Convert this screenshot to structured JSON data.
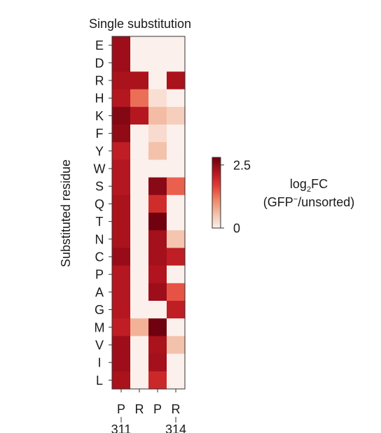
{
  "chart_data": {
    "type": "heatmap",
    "title": "Single substitution",
    "ylabel": "Substituted residue",
    "rows": [
      "E",
      "D",
      "R",
      "H",
      "K",
      "F",
      "Y",
      "W",
      "S",
      "Q",
      "T",
      "N",
      "C",
      "P",
      "A",
      "G",
      "M",
      "V",
      "I",
      "L"
    ],
    "columns": [
      "P",
      "R",
      "P",
      "R"
    ],
    "column_positions": [
      "311",
      "",
      "",
      "314"
    ],
    "values": [
      [
        2.4,
        0.0,
        0.0,
        0.0
      ],
      [
        2.4,
        0.0,
        0.0,
        0.0
      ],
      [
        2.3,
        2.3,
        0.0,
        2.3
      ],
      [
        2.2,
        1.3,
        0.2,
        0.0
      ],
      [
        2.6,
        2.2,
        0.6,
        0.4
      ],
      [
        2.5,
        0.0,
        0.25,
        0.0
      ],
      [
        2.1,
        0.0,
        0.55,
        0.0
      ],
      [
        2.2,
        0.0,
        0.0,
        0.0
      ],
      [
        2.2,
        0.0,
        2.55,
        1.4
      ],
      [
        2.3,
        0.0,
        1.9,
        0.0
      ],
      [
        2.3,
        0.0,
        2.75,
        0.0
      ],
      [
        2.3,
        0.0,
        2.35,
        0.5
      ],
      [
        2.45,
        0.0,
        2.35,
        2.1
      ],
      [
        2.2,
        0.0,
        2.25,
        0.0
      ],
      [
        2.2,
        0.0,
        2.4,
        1.5
      ],
      [
        2.2,
        0.0,
        0.0,
        2.1
      ],
      [
        2.1,
        0.7,
        2.75,
        0.0
      ],
      [
        2.4,
        0.0,
        2.3,
        0.55
      ],
      [
        2.4,
        0.0,
        2.35,
        0.0
      ],
      [
        2.3,
        0.0,
        1.95,
        0.0
      ]
    ],
    "colorbar": {
      "min": 0,
      "max": 2.8,
      "ticks": [
        0,
        2.5
      ],
      "tick_labels": [
        "0",
        "2.5"
      ],
      "colors": [
        "#fbf0eb",
        "#f4c0a9",
        "#ef8666",
        "#e23b35",
        "#b2141e",
        "#6a000f"
      ]
    }
  },
  "legend": {
    "line1_prefix": "log",
    "line1_sub": "2",
    "line1_suffix": "FC",
    "line2_prefix": "(GFP",
    "line2_sup": "−",
    "line2_suffix": "/unsorted)"
  },
  "colors": {
    "frame": "#333333",
    "text": "#1a1a1a"
  }
}
